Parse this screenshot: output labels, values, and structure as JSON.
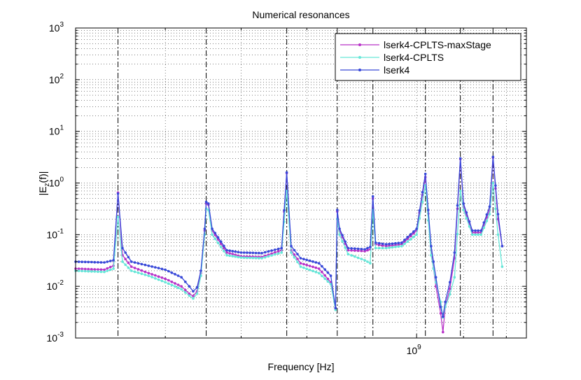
{
  "chart_data": {
    "type": "line",
    "title": "Numerical resonances",
    "xlabel": "Frequency [Hz]",
    "ylabel_main": "|E",
    "ylabel_sub": "z",
    "ylabel_tail": "(f)|",
    "xscale": "log",
    "yscale": "log",
    "xlim": [
      500000000.0,
      1250000000.0
    ],
    "ylim": [
      0.001,
      1000
    ],
    "grid": true,
    "legend_position": "top-right",
    "x_tick_major_labels": [
      {
        "base": "10",
        "exp": "9"
      }
    ],
    "y_tick_labels": [
      {
        "base": "10",
        "exp": "-3"
      },
      {
        "base": "10",
        "exp": "-2"
      },
      {
        "base": "10",
        "exp": "-1"
      },
      {
        "base": "10",
        "exp": "0"
      },
      {
        "base": "10",
        "exp": "1"
      },
      {
        "base": "10",
        "exp": "2"
      },
      {
        "base": "10",
        "exp": "3"
      }
    ],
    "resonance_lines": [
      545000000.0,
      652000000.0,
      768000000.0,
      851000000.0,
      915000000.0,
      1018000000.0,
      1093000000.0,
      1168000000.0
    ],
    "series": [
      {
        "name": "lserk4-CPLTS-maxStage",
        "color": "#b832c8",
        "points": [
          [
            500000000.0,
            0.022
          ],
          [
            530000000.0,
            0.021
          ],
          [
            540000000.0,
            0.025
          ],
          [
            545000000.0,
            0.65
          ],
          [
            550000000.0,
            0.04
          ],
          [
            560000000.0,
            0.024
          ],
          [
            580000000.0,
            0.018
          ],
          [
            600000000.0,
            0.014
          ],
          [
            620000000.0,
            0.01
          ],
          [
            630000000.0,
            0.0072
          ],
          [
            635000000.0,
            0.0065
          ],
          [
            640000000.0,
            0.008
          ],
          [
            645000000.0,
            0.018
          ],
          [
            650000000.0,
            0.12
          ],
          [
            652000000.0,
            0.4
          ],
          [
            655000000.0,
            0.38
          ],
          [
            660000000.0,
            0.12
          ],
          [
            680000000.0,
            0.045
          ],
          [
            700000000.0,
            0.038
          ],
          [
            730000000.0,
            0.037
          ],
          [
            760000000.0,
            0.05
          ],
          [
            768000000.0,
            1.55
          ],
          [
            775000000.0,
            0.05
          ],
          [
            790000000.0,
            0.028
          ],
          [
            820000000.0,
            0.022
          ],
          [
            840000000.0,
            0.012
          ],
          [
            848000000.0,
            0.0038
          ],
          [
            851000000.0,
            0.28
          ],
          [
            855000000.0,
            0.12
          ],
          [
            870000000.0,
            0.05
          ],
          [
            900000000.0,
            0.048
          ],
          [
            910000000.0,
            0.052
          ],
          [
            915000000.0,
            0.5
          ],
          [
            920000000.0,
            0.065
          ],
          [
            940000000.0,
            0.06
          ],
          [
            970000000.0,
            0.065
          ],
          [
            1000000000.0,
            0.12
          ],
          [
            1018000000.0,
            1.3
          ],
          [
            1030000000.0,
            0.05
          ],
          [
            1040000000.0,
            0.01
          ],
          [
            1050000000.0,
            0.003
          ],
          [
            1055000000.0,
            0.0013
          ],
          [
            1060000000.0,
            0.004
          ],
          [
            1070000000.0,
            0.009
          ],
          [
            1080000000.0,
            0.035
          ],
          [
            1093000000.0,
            2.9
          ],
          [
            1100000000.0,
            0.35
          ],
          [
            1120000000.0,
            0.11
          ],
          [
            1140000000.0,
            0.11
          ],
          [
            1160000000.0,
            0.3
          ],
          [
            1168000000.0,
            3.1
          ],
          [
            1180000000.0,
            0.2
          ],
          [
            1190000000.0,
            0.06
          ]
        ]
      },
      {
        "name": "lserk4-CPLTS",
        "color": "#66e6d8",
        "points": [
          [
            500000000.0,
            0.02
          ],
          [
            530000000.0,
            0.019
          ],
          [
            540000000.0,
            0.022
          ],
          [
            545000000.0,
            0.22
          ],
          [
            550000000.0,
            0.03
          ],
          [
            560000000.0,
            0.02
          ],
          [
            580000000.0,
            0.016
          ],
          [
            600000000.0,
            0.012
          ],
          [
            620000000.0,
            0.0088
          ],
          [
            630000000.0,
            0.0066
          ],
          [
            635000000.0,
            0.0058
          ],
          [
            640000000.0,
            0.0072
          ],
          [
            645000000.0,
            0.016
          ],
          [
            650000000.0,
            0.1
          ],
          [
            652000000.0,
            0.32
          ],
          [
            655000000.0,
            0.3
          ],
          [
            660000000.0,
            0.1
          ],
          [
            680000000.0,
            0.04
          ],
          [
            700000000.0,
            0.036
          ],
          [
            730000000.0,
            0.035
          ],
          [
            760000000.0,
            0.045
          ],
          [
            768000000.0,
            0.7
          ],
          [
            775000000.0,
            0.045
          ],
          [
            790000000.0,
            0.024
          ],
          [
            820000000.0,
            0.018
          ],
          [
            840000000.0,
            0.011
          ],
          [
            848000000.0,
            0.0035
          ],
          [
            851000000.0,
            0.2
          ],
          [
            855000000.0,
            0.1
          ],
          [
            870000000.0,
            0.042
          ],
          [
            900000000.0,
            0.032
          ],
          [
            910000000.0,
            0.028
          ],
          [
            915000000.0,
            0.3
          ],
          [
            920000000.0,
            0.055
          ],
          [
            940000000.0,
            0.055
          ],
          [
            970000000.0,
            0.06
          ],
          [
            1000000000.0,
            0.1
          ],
          [
            1018000000.0,
            0.9
          ],
          [
            1030000000.0,
            0.04
          ],
          [
            1040000000.0,
            0.012
          ],
          [
            1050000000.0,
            0.005
          ],
          [
            1055000000.0,
            0.0025
          ],
          [
            1060000000.0,
            0.004
          ],
          [
            1070000000.0,
            0.007
          ],
          [
            1080000000.0,
            0.015
          ],
          [
            1093000000.0,
            0.7
          ],
          [
            1100000000.0,
            0.3
          ],
          [
            1120000000.0,
            0.1
          ],
          [
            1140000000.0,
            0.1
          ],
          [
            1160000000.0,
            0.25
          ],
          [
            1168000000.0,
            1.0
          ],
          [
            1180000000.0,
            0.1
          ],
          [
            1190000000.0,
            0.024
          ]
        ]
      },
      {
        "name": "lserk4",
        "color": "#3848d8",
        "points": [
          [
            500000000.0,
            0.03
          ],
          [
            530000000.0,
            0.029
          ],
          [
            540000000.0,
            0.032
          ],
          [
            545000000.0,
            0.62
          ],
          [
            550000000.0,
            0.055
          ],
          [
            560000000.0,
            0.03
          ],
          [
            580000000.0,
            0.025
          ],
          [
            600000000.0,
            0.021
          ],
          [
            620000000.0,
            0.015
          ],
          [
            630000000.0,
            0.01
          ],
          [
            635000000.0,
            0.008
          ],
          [
            640000000.0,
            0.0095
          ],
          [
            645000000.0,
            0.02
          ],
          [
            650000000.0,
            0.13
          ],
          [
            652000000.0,
            0.43
          ],
          [
            655000000.0,
            0.4
          ],
          [
            660000000.0,
            0.13
          ],
          [
            680000000.0,
            0.05
          ],
          [
            700000000.0,
            0.045
          ],
          [
            730000000.0,
            0.044
          ],
          [
            760000000.0,
            0.055
          ],
          [
            768000000.0,
            1.6
          ],
          [
            775000000.0,
            0.06
          ],
          [
            790000000.0,
            0.035
          ],
          [
            820000000.0,
            0.028
          ],
          [
            840000000.0,
            0.016
          ],
          [
            848000000.0,
            0.0038
          ],
          [
            851000000.0,
            0.3
          ],
          [
            855000000.0,
            0.13
          ],
          [
            870000000.0,
            0.055
          ],
          [
            900000000.0,
            0.052
          ],
          [
            910000000.0,
            0.058
          ],
          [
            915000000.0,
            0.55
          ],
          [
            920000000.0,
            0.07
          ],
          [
            940000000.0,
            0.065
          ],
          [
            970000000.0,
            0.07
          ],
          [
            1000000000.0,
            0.13
          ],
          [
            1018000000.0,
            1.5
          ],
          [
            1030000000.0,
            0.06
          ],
          [
            1040000000.0,
            0.015
          ],
          [
            1050000000.0,
            0.004
          ],
          [
            1055000000.0,
            0.0026
          ],
          [
            1060000000.0,
            0.005
          ],
          [
            1070000000.0,
            0.012
          ],
          [
            1080000000.0,
            0.045
          ],
          [
            1093000000.0,
            3.0
          ],
          [
            1100000000.0,
            0.4
          ],
          [
            1120000000.0,
            0.12
          ],
          [
            1140000000.0,
            0.12
          ],
          [
            1160000000.0,
            0.35
          ],
          [
            1168000000.0,
            3.2
          ],
          [
            1180000000.0,
            0.25
          ],
          [
            1190000000.0,
            0.06
          ]
        ]
      }
    ]
  }
}
